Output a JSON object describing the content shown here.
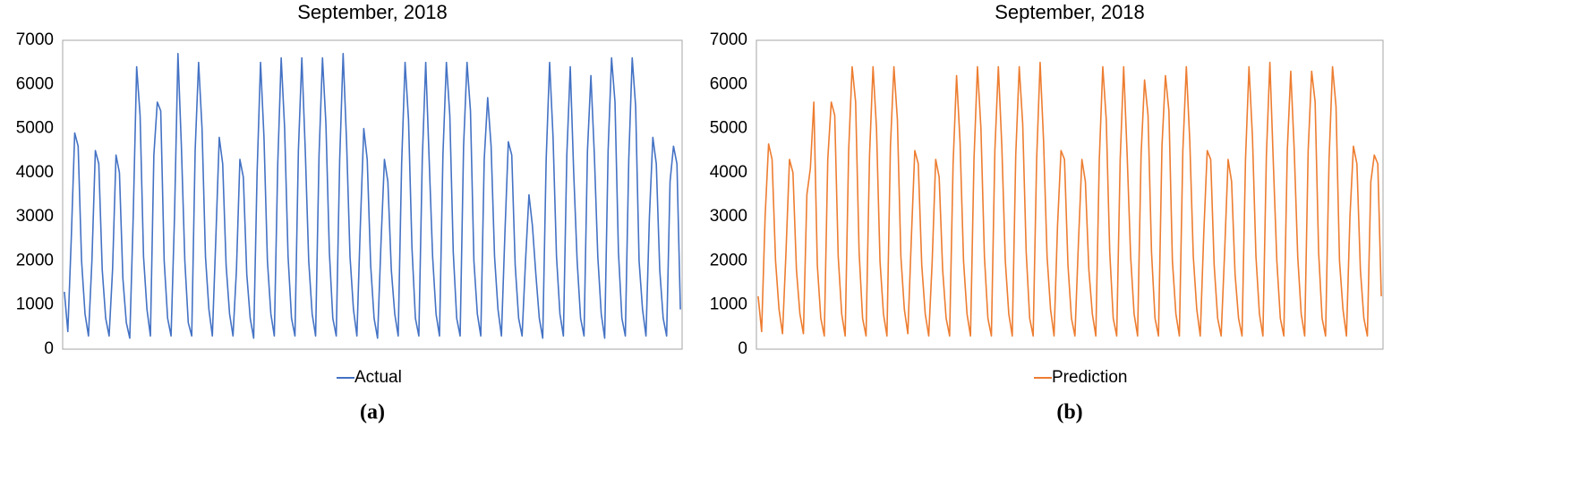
{
  "chart_data": [
    {
      "type": "line",
      "title": "September, 2018",
      "caption": "(a)",
      "legend": "bottom",
      "grid": false,
      "ylim": [
        0,
        7000
      ],
      "yticks": [
        0,
        1000,
        2000,
        3000,
        4000,
        5000,
        6000,
        7000
      ],
      "series": [
        {
          "name": "Actual",
          "color": "#4472c4",
          "values": [
            1300,
            400,
            2500,
            4900,
            4600,
            2000,
            800,
            300,
            2000,
            4500,
            4200,
            1800,
            700,
            300,
            1800,
            4400,
            4000,
            1600,
            600,
            250,
            3000,
            6400,
            5300,
            2100,
            900,
            300,
            4400,
            5600,
            5400,
            2000,
            700,
            300,
            3000,
            6700,
            4600,
            2000,
            600,
            300,
            4500,
            6500,
            5000,
            2100,
            900,
            300,
            2500,
            4800,
            4200,
            1900,
            800,
            300,
            1800,
            4300,
            3900,
            1700,
            700,
            250,
            4000,
            6500,
            4800,
            2000,
            800,
            300,
            4200,
            6600,
            5000,
            2100,
            700,
            300,
            4500,
            6600,
            4500,
            2000,
            800,
            300,
            4400,
            6600,
            5100,
            2200,
            700,
            300,
            4300,
            6700,
            4700,
            2100,
            900,
            300,
            2800,
            5000,
            4300,
            1900,
            700,
            250,
            2400,
            4300,
            3800,
            1800,
            800,
            300,
            4200,
            6500,
            5200,
            2300,
            700,
            300,
            4300,
            6500,
            4300,
            2100,
            800,
            300,
            4400,
            6500,
            5300,
            2200,
            700,
            300,
            4600,
            6500,
            5400,
            2000,
            800,
            300,
            4300,
            5700,
            4600,
            2100,
            900,
            300,
            2600,
            4700,
            4400,
            1900,
            700,
            300,
            2000,
            3500,
            2800,
            1700,
            700,
            250,
            4300,
            6500,
            4800,
            2100,
            800,
            300,
            4400,
            6400,
            4000,
            2000,
            700,
            300,
            4500,
            6200,
            4400,
            2100,
            800,
            250,
            4500,
            6600,
            5600,
            2200,
            700,
            300,
            4300,
            6600,
            5500,
            2000,
            900,
            300,
            3000,
            4800,
            4200,
            1800,
            700,
            300,
            3800,
            4600,
            4200,
            900
          ]
        }
      ]
    },
    {
      "type": "line",
      "title": "September, 2018",
      "caption": "(b)",
      "legend": "bottom",
      "grid": false,
      "ylim": [
        0,
        7000
      ],
      "yticks": [
        0,
        1000,
        2000,
        3000,
        4000,
        5000,
        6000,
        7000
      ],
      "series": [
        {
          "name": "Prediction",
          "color": "#ed7d31",
          "values": [
            1200,
            400,
            3000,
            4650,
            4300,
            2000,
            900,
            350,
            2200,
            4300,
            4000,
            1800,
            800,
            350,
            3500,
            4100,
            5600,
            1900,
            700,
            300,
            4300,
            5600,
            5300,
            2100,
            800,
            300,
            4500,
            6400,
            5600,
            2200,
            700,
            300,
            4400,
            6400,
            5000,
            2000,
            800,
            300,
            4600,
            6400,
            5200,
            2100,
            900,
            350,
            2500,
            4500,
            4200,
            1900,
            800,
            300,
            2000,
            4300,
            3900,
            1800,
            700,
            300,
            4200,
            6200,
            4700,
            2000,
            800,
            300,
            4300,
            6400,
            5000,
            2100,
            700,
            300,
            4500,
            6400,
            4600,
            2000,
            800,
            300,
            4400,
            6400,
            5100,
            2200,
            700,
            300,
            4300,
            6500,
            4700,
            2100,
            900,
            300,
            2800,
            4500,
            4300,
            1900,
            700,
            300,
            2400,
            4300,
            3800,
            1800,
            800,
            300,
            4300,
            6400,
            5200,
            2200,
            700,
            300,
            4300,
            6400,
            4400,
            2100,
            800,
            300,
            4400,
            6100,
            5300,
            2200,
            700,
            300,
            4600,
            6200,
            5400,
            2000,
            800,
            300,
            4500,
            6400,
            4700,
            2100,
            900,
            300,
            2600,
            4500,
            4300,
            1900,
            700,
            300,
            2200,
            4300,
            3800,
            1700,
            700,
            300,
            4300,
            6400,
            4800,
            2100,
            800,
            300,
            4400,
            6500,
            4200,
            2000,
            700,
            300,
            4500,
            6300,
            4500,
            2100,
            800,
            300,
            4500,
            6300,
            5600,
            2200,
            700,
            300,
            4300,
            6400,
            5500,
            2000,
            900,
            300,
            3000,
            4600,
            4200,
            1800,
            700,
            300,
            3800,
            4400,
            4200,
            1200
          ]
        }
      ]
    }
  ]
}
